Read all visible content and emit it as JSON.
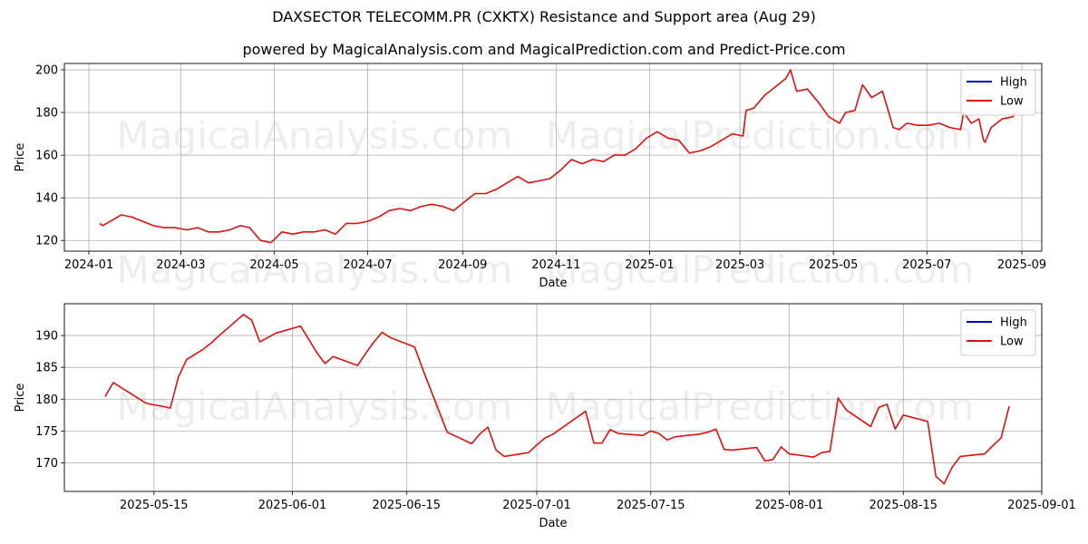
{
  "title": "DAXSECTOR TELECOMM.PR (CXKTX) Resistance and Support area (Aug 29)",
  "subtitle": "powered by MagicalAnalysis.com and MagicalPrediction.com and Predict-Price.com",
  "watermarks": [
    "MagicalAnalysis.com",
    "MagicalPrediction.com"
  ],
  "colors": {
    "high": "#0000cc",
    "low": "#dd1111",
    "grid": "#b0b0b0"
  },
  "chart_data": [
    {
      "type": "line",
      "xlabel": "Date",
      "ylabel": "Price",
      "xlim": [
        "2023-12-16",
        "2025-09-14"
      ],
      "ylim": [
        115,
        203
      ],
      "grid": true,
      "legend_position": "top-right",
      "x_ticks": [
        "2024-01",
        "2024-03",
        "2024-05",
        "2024-07",
        "2024-09",
        "2024-11",
        "2025-01",
        "2025-03",
        "2025-05",
        "2025-07",
        "2025-09"
      ],
      "x_tick_dates": [
        "2024-01-01",
        "2024-03-01",
        "2024-05-01",
        "2024-07-01",
        "2024-09-01",
        "2024-11-01",
        "2025-01-01",
        "2025-03-01",
        "2025-05-01",
        "2025-07-01",
        "2025-09-01"
      ],
      "y_ticks": [
        120,
        140,
        160,
        180,
        200
      ],
      "series": [
        {
          "name": "High",
          "x": [],
          "values": []
        },
        {
          "name": "Low",
          "x": [
            "2024-01-08",
            "2024-01-10",
            "2024-01-15",
            "2024-01-22",
            "2024-01-29",
            "2024-02-05",
            "2024-02-12",
            "2024-02-19",
            "2024-02-26",
            "2024-03-05",
            "2024-03-12",
            "2024-03-19",
            "2024-03-26",
            "2024-04-02",
            "2024-04-09",
            "2024-04-15",
            "2024-04-22",
            "2024-04-29",
            "2024-05-06",
            "2024-05-13",
            "2024-05-20",
            "2024-05-27",
            "2024-06-03",
            "2024-06-10",
            "2024-06-17",
            "2024-06-24",
            "2024-07-01",
            "2024-07-08",
            "2024-07-15",
            "2024-07-22",
            "2024-07-29",
            "2024-08-05",
            "2024-08-12",
            "2024-08-19",
            "2024-08-26",
            "2024-09-02",
            "2024-09-09",
            "2024-09-16",
            "2024-09-23",
            "2024-09-30",
            "2024-10-07",
            "2024-10-14",
            "2024-10-21",
            "2024-10-28",
            "2024-11-04",
            "2024-11-11",
            "2024-11-18",
            "2024-11-25",
            "2024-12-02",
            "2024-12-09",
            "2024-12-16",
            "2024-12-23",
            "2024-12-30",
            "2025-01-06",
            "2025-01-13",
            "2025-01-20",
            "2025-01-27",
            "2025-02-03",
            "2025-02-10",
            "2025-02-17",
            "2025-02-24",
            "2025-03-03",
            "2025-03-05",
            "2025-03-10",
            "2025-03-17",
            "2025-03-24",
            "2025-03-31",
            "2025-04-03",
            "2025-04-07",
            "2025-04-14",
            "2025-04-21",
            "2025-04-28",
            "2025-05-05",
            "2025-05-09",
            "2025-05-15",
            "2025-05-20",
            "2025-05-26",
            "2025-06-02",
            "2025-06-09",
            "2025-06-13",
            "2025-06-18",
            "2025-06-25",
            "2025-07-02",
            "2025-07-09",
            "2025-07-16",
            "2025-07-23",
            "2025-07-25",
            "2025-07-30",
            "2025-08-04",
            "2025-08-07",
            "2025-08-08",
            "2025-08-12",
            "2025-08-19",
            "2025-08-26",
            "2025-08-28"
          ],
          "values": [
            128,
            127,
            129,
            132,
            131,
            129,
            127,
            126,
            126,
            125,
            126,
            124,
            124,
            125,
            127,
            126,
            120,
            119,
            124,
            123,
            124,
            124,
            125,
            123,
            128,
            128,
            129,
            131,
            134,
            135,
            134,
            136,
            137,
            136,
            134,
            138,
            142,
            142,
            144,
            147,
            150,
            147,
            148,
            149,
            153,
            158,
            156,
            158,
            157,
            160,
            160,
            163,
            168,
            171,
            168,
            167,
            161,
            162,
            164,
            167,
            170,
            169,
            181,
            182,
            188,
            192,
            196,
            200,
            190,
            191,
            185,
            178,
            175,
            180,
            181,
            193,
            187,
            190,
            173,
            172,
            175,
            174,
            174,
            175,
            173,
            172,
            180,
            175,
            177,
            167,
            166,
            173,
            177,
            178,
            180
          ]
        }
      ]
    },
    {
      "type": "line",
      "xlabel": "Date",
      "ylabel": "Price",
      "xlim": [
        "2025-05-04",
        "2025-09-01"
      ],
      "ylim": [
        165.5,
        195
      ],
      "grid": true,
      "legend_position": "top-right",
      "x_ticks": [
        "2025-05-15",
        "2025-06-01",
        "2025-06-15",
        "2025-07-01",
        "2025-07-15",
        "2025-08-01",
        "2025-08-15",
        "2025-09-01"
      ],
      "x_tick_dates": [
        "2025-05-15",
        "2025-06-01",
        "2025-06-15",
        "2025-07-01",
        "2025-07-15",
        "2025-08-01",
        "2025-08-15",
        "2025-09-01"
      ],
      "y_ticks": [
        170,
        175,
        180,
        185,
        190
      ],
      "series": [
        {
          "name": "High",
          "x": [],
          "values": []
        },
        {
          "name": "Low",
          "x": [
            "2025-05-09",
            "2025-05-10",
            "2025-05-12",
            "2025-05-13",
            "2025-05-14",
            "2025-05-15",
            "2025-05-16",
            "2025-05-17",
            "2025-05-18",
            "2025-05-19",
            "2025-05-20",
            "2025-05-21",
            "2025-05-22",
            "2025-05-23",
            "2025-05-26",
            "2025-05-27",
            "2025-05-28",
            "2025-05-29",
            "2025-05-30",
            "2025-06-02",
            "2025-06-04",
            "2025-06-05",
            "2025-06-06",
            "2025-06-09",
            "2025-06-10",
            "2025-06-11",
            "2025-06-12",
            "2025-06-13",
            "2025-06-16",
            "2025-06-17",
            "2025-06-18",
            "2025-06-20",
            "2025-06-23",
            "2025-06-24",
            "2025-06-25",
            "2025-06-26",
            "2025-06-27",
            "2025-06-30",
            "2025-07-01",
            "2025-07-02",
            "2025-07-03",
            "2025-07-07",
            "2025-07-08",
            "2025-07-09",
            "2025-07-10",
            "2025-07-11",
            "2025-07-14",
            "2025-07-15",
            "2025-07-16",
            "2025-07-17",
            "2025-07-18",
            "2025-07-21",
            "2025-07-22",
            "2025-07-23",
            "2025-07-24",
            "2025-07-25",
            "2025-07-28",
            "2025-07-29",
            "2025-07-30",
            "2025-07-31",
            "2025-08-01",
            "2025-08-04",
            "2025-08-05",
            "2025-08-06",
            "2025-08-07",
            "2025-08-08",
            "2025-08-11",
            "2025-08-12",
            "2025-08-13",
            "2025-08-14",
            "2025-08-15",
            "2025-08-18",
            "2025-08-19",
            "2025-08-20",
            "2025-08-21",
            "2025-08-22",
            "2025-08-25",
            "2025-08-26",
            "2025-08-27",
            "2025-08-28"
          ],
          "values": [
            180.4,
            182.6,
            181.0,
            180.2,
            179.4,
            179.1,
            178.9,
            178.6,
            183.5,
            186.2,
            187.0,
            187.8,
            188.8,
            190.0,
            193.3,
            192.4,
            189.0,
            189.7,
            190.4,
            191.5,
            187.3,
            185.6,
            186.7,
            185.3,
            187.2,
            189.0,
            190.5,
            189.7,
            188.2,
            184.7,
            181.4,
            174.8,
            173.0,
            174.5,
            175.6,
            172.0,
            171.0,
            171.6,
            172.8,
            173.9,
            174.5,
            178.1,
            173.1,
            173.1,
            175.2,
            174.6,
            174.3,
            175.0,
            174.6,
            173.6,
            174.1,
            174.5,
            174.8,
            175.3,
            172.1,
            172.0,
            172.4,
            170.3,
            170.5,
            172.5,
            171.4,
            170.9,
            171.6,
            171.8,
            180.2,
            178.3,
            175.7,
            178.7,
            179.2,
            175.3,
            177.5,
            176.5,
            167.9,
            166.7,
            169.3,
            171.0,
            171.4,
            172.7,
            173.9,
            178.9
          ]
        }
      ]
    }
  ]
}
